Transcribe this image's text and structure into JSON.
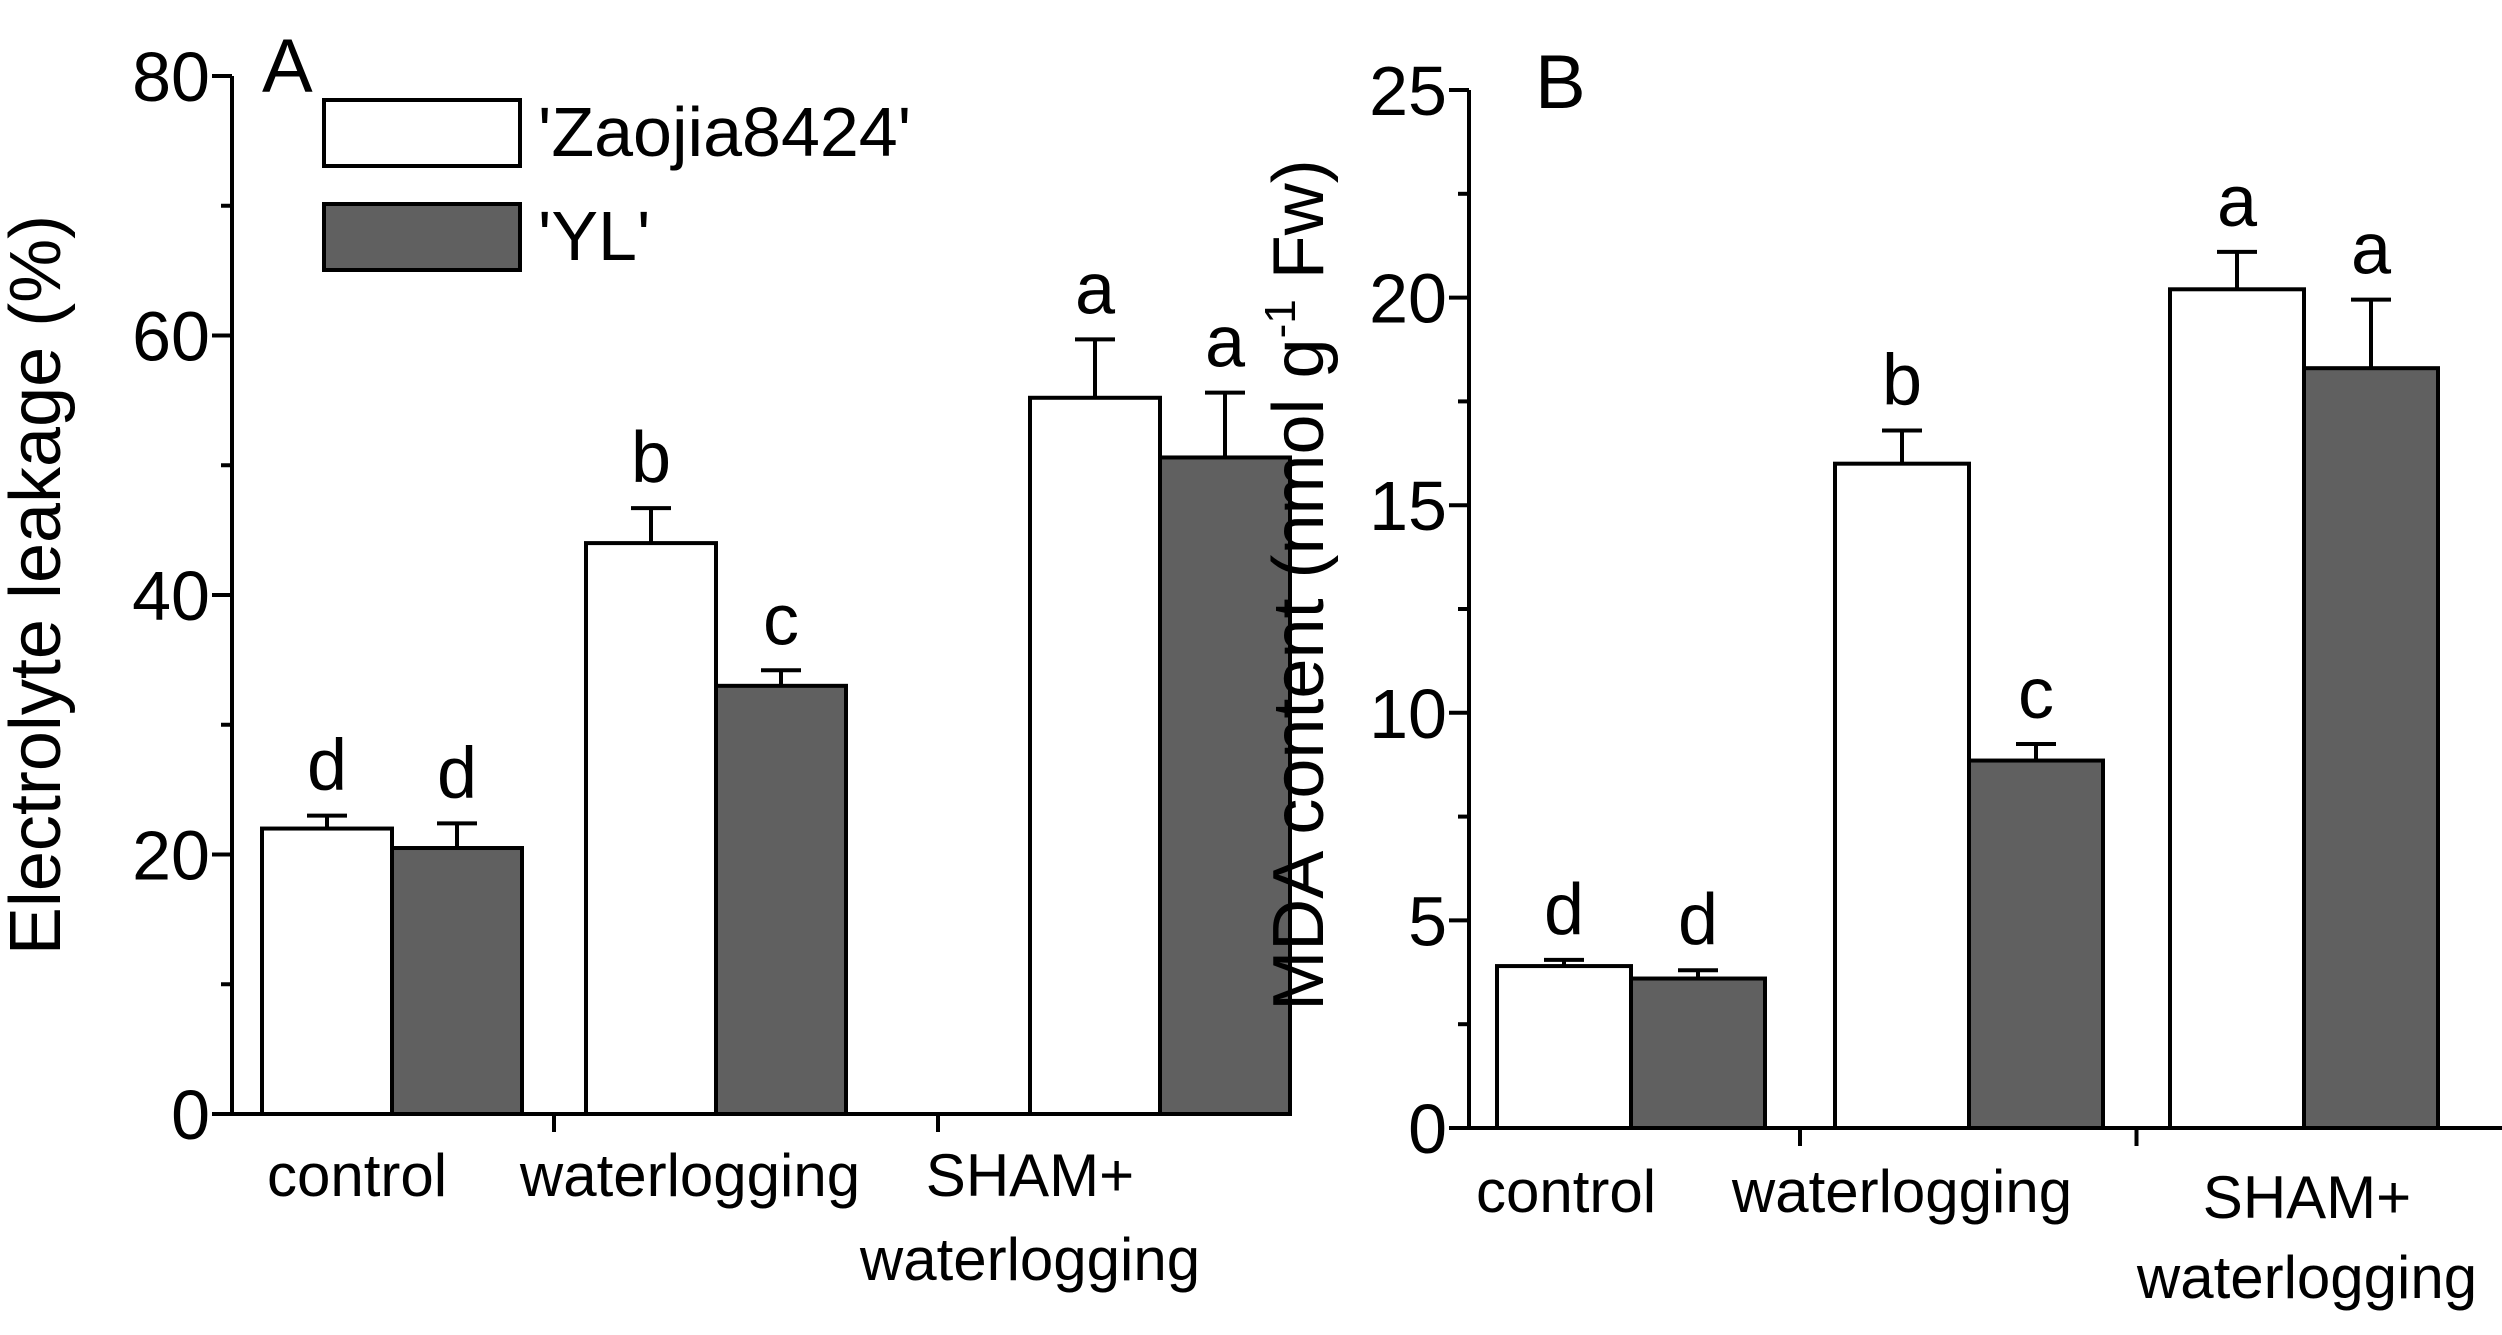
{
  "colors": {
    "series_1_fill": "#ffffff",
    "series_2_fill": "#606060",
    "stroke": "#000000"
  },
  "legend": {
    "items": [
      "'Zaojia8424'",
      "'YL'"
    ]
  },
  "chart_data": [
    {
      "type": "bar",
      "panel_label": "A",
      "categories": [
        [
          "control"
        ],
        [
          "waterlogging"
        ],
        [
          "SHAM+",
          "waterlogging"
        ]
      ],
      "series": [
        {
          "name": "'Zaojia8424'",
          "values": [
            22,
            44,
            55.2
          ],
          "errors": [
            1.0,
            2.7,
            4.5
          ],
          "letters": [
            "d",
            "b",
            "a"
          ]
        },
        {
          "name": "'YL'",
          "values": [
            20.5,
            33,
            50.6
          ],
          "errors": [
            1.9,
            1.2,
            5.0
          ],
          "letters": [
            "d",
            "c",
            "a"
          ]
        }
      ],
      "xlabel": "",
      "ylabel": "Electrolyte leakage (%)",
      "ylim": [
        0,
        80
      ],
      "yticks": [
        0,
        20,
        40,
        60,
        80
      ],
      "yticklabels": [
        "0",
        "20",
        "40",
        "60",
        "80"
      ],
      "legend_position": "top-left"
    },
    {
      "type": "bar",
      "panel_label": "B",
      "categories": [
        [
          "control"
        ],
        [
          "waterlogging"
        ],
        [
          "SHAM+",
          "waterlogging"
        ]
      ],
      "series": [
        {
          "name": "'Zaojia8424'",
          "values": [
            3.9,
            16,
            20.2
          ],
          "errors": [
            0.15,
            0.8,
            0.9
          ],
          "letters": [
            "d",
            "b",
            "a"
          ]
        },
        {
          "name": "'YL'",
          "values": [
            3.6,
            8.85,
            18.3
          ],
          "errors": [
            0.2,
            0.4,
            1.65
          ],
          "letters": [
            "d",
            "c",
            "a"
          ]
        }
      ],
      "xlabel": "",
      "ylabel": "MDA content (nmol g-1 Fw)",
      "ylabel_parts": {
        "prefix": "MDA content (nmol g",
        "superscript": "-1",
        "suffix": " Fw)"
      },
      "ylim": [
        0,
        25
      ],
      "yticks": [
        0,
        5,
        10,
        15,
        20,
        25
      ],
      "yticklabels": [
        "0",
        "5",
        "10",
        "15",
        "20",
        "25"
      ]
    }
  ]
}
